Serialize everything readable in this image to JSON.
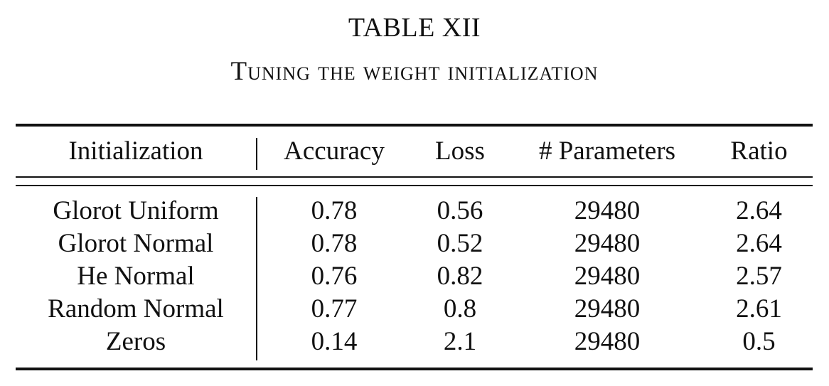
{
  "table": {
    "number": "TABLE XII",
    "caption": "Tuning the weight initialization",
    "headers": {
      "initialization": "Initialization",
      "accuracy": "Accuracy",
      "loss": "Loss",
      "parameters": "# Parameters",
      "ratio": "Ratio"
    },
    "rows": [
      {
        "initialization": "Glorot Uniform",
        "accuracy": "0.78",
        "loss": "0.56",
        "parameters": "29480",
        "ratio": "2.64"
      },
      {
        "initialization": "Glorot Normal",
        "accuracy": "0.78",
        "loss": "0.52",
        "parameters": "29480",
        "ratio": "2.64"
      },
      {
        "initialization": "He Normal",
        "accuracy": "0.76",
        "loss": "0.82",
        "parameters": "29480",
        "ratio": "2.57"
      },
      {
        "initialization": "Random Normal",
        "accuracy": "0.77",
        "loss": "0.8",
        "parameters": "29480",
        "ratio": "2.61"
      },
      {
        "initialization": "Zeros",
        "accuracy": "0.14",
        "loss": "2.1",
        "parameters": "29480",
        "ratio": "0.5"
      }
    ]
  }
}
